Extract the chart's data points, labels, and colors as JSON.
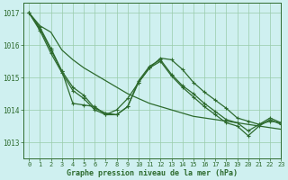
{
  "title": "Graphe pression niveau de la mer (hPa)",
  "bg_color": "#cff0f0",
  "grid_color": "#99ccaa",
  "line_color": "#2d6a2d",
  "marker_color": "#2d6a2d",
  "xlim": [
    -0.5,
    23
  ],
  "ylim": [
    1012.5,
    1017.3
  ],
  "yticks": [
    1013,
    1014,
    1015,
    1016,
    1017
  ],
  "xticks": [
    0,
    1,
    2,
    3,
    4,
    5,
    6,
    7,
    8,
    9,
    10,
    11,
    12,
    13,
    14,
    15,
    16,
    17,
    18,
    19,
    20,
    21,
    22,
    23
  ],
  "series1": [
    1017.0,
    1016.6,
    1016.4,
    1015.85,
    1015.55,
    1015.3,
    1015.1,
    1014.9,
    1014.7,
    1014.5,
    1014.35,
    1014.2,
    1014.1,
    1014.0,
    1013.9,
    1013.8,
    1013.75,
    1013.7,
    1013.65,
    1013.6,
    1013.55,
    1013.5,
    1013.45,
    1013.4
  ],
  "series2": [
    1017.0,
    1016.55,
    1015.9,
    1015.2,
    1014.2,
    1014.15,
    1014.1,
    1013.85,
    1014.0,
    1014.35,
    1014.85,
    1015.3,
    1015.6,
    1015.55,
    1015.25,
    1014.85,
    1014.55,
    1014.3,
    1014.05,
    1013.75,
    1013.65,
    1013.55,
    1013.65,
    1013.6
  ],
  "series3": [
    1017.0,
    1016.5,
    1015.85,
    1015.2,
    1014.7,
    1014.45,
    1014.05,
    1013.9,
    1013.85,
    1014.1,
    1014.9,
    1015.35,
    1015.55,
    1015.1,
    1014.75,
    1014.5,
    1014.2,
    1013.95,
    1013.7,
    1013.6,
    1013.35,
    1013.55,
    1013.75,
    1013.6
  ],
  "series4": [
    1017.0,
    1016.45,
    1015.75,
    1015.15,
    1014.6,
    1014.35,
    1014.0,
    1013.85,
    1013.85,
    1014.1,
    1014.85,
    1015.3,
    1015.5,
    1015.05,
    1014.7,
    1014.4,
    1014.1,
    1013.85,
    1013.6,
    1013.5,
    1013.2,
    1013.5,
    1013.7,
    1013.55
  ]
}
